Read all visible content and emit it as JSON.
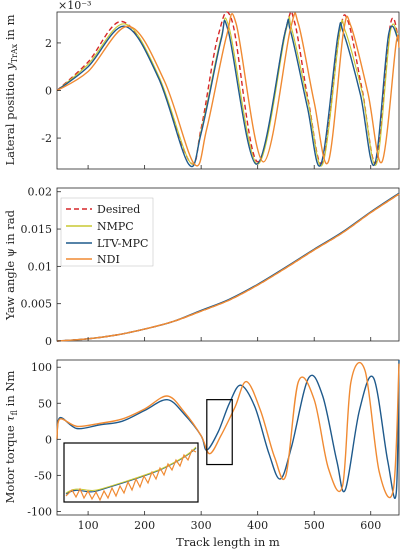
{
  "figure": {
    "exponent_label": "×10⁻³",
    "xlabel": "Track length in m",
    "colors": {
      "Desired": "#d62728",
      "NMPC": "#c8c832",
      "LTV-MPC": "#1f5a8c",
      "NDI": "#f08a32"
    }
  },
  "chart_data": [
    {
      "type": "line",
      "ylabel": "Lateral position y_TrAx in m",
      "ylabel_main": "Lateral position ",
      "ylabel_sym": "y",
      "ylabel_sub": "TrAx",
      "ylabel_unit": " in m",
      "xlim": [
        45,
        650
      ],
      "ylim": [
        -3.3,
        3.3
      ],
      "y_scale_note": "×10⁻³",
      "xticks": [
        100,
        200,
        300,
        400,
        500,
        600
      ],
      "yticks": [
        -2,
        0,
        2
      ],
      "series": [
        {
          "name": "Desired",
          "x": [
            45,
            100,
            160,
            220,
            280,
            300,
            330,
            355,
            400,
            450,
            465,
            490,
            515,
            545,
            560,
            585,
            610,
            635,
            650
          ],
          "y": [
            0,
            1.2,
            2.9,
            0.8,
            -3.0,
            -1.6,
            2.3,
            2.9,
            -3.0,
            2.6,
            2.9,
            -0.5,
            -3.0,
            2.4,
            2.9,
            0.0,
            -3.0,
            2.8,
            2.0
          ]
        },
        {
          "name": "NMPC",
          "x": [
            45,
            100,
            165,
            225,
            280,
            300,
            335,
            350,
            400,
            450,
            460,
            490,
            515,
            545,
            555,
            585,
            610,
            635,
            650
          ],
          "y": [
            0,
            1.1,
            2.8,
            0.6,
            -3.0,
            -1.7,
            2.2,
            2.6,
            -3.1,
            2.5,
            2.6,
            -0.6,
            -3.1,
            2.4,
            2.5,
            -0.1,
            -3.1,
            2.5,
            2.0
          ]
        },
        {
          "name": "LTV-MPC",
          "x": [
            45,
            100,
            165,
            225,
            278,
            300,
            335,
            348,
            398,
            448,
            458,
            488,
            512,
            542,
            552,
            582,
            607,
            632,
            650
          ],
          "y": [
            0,
            1.0,
            2.7,
            0.5,
            -3.1,
            -1.8,
            2.1,
            2.5,
            -3.1,
            2.4,
            2.5,
            -0.7,
            -3.1,
            2.3,
            2.4,
            -0.2,
            -3.1,
            2.4,
            2.0
          ]
        },
        {
          "name": "NDI",
          "x": [
            45,
            100,
            172,
            235,
            288,
            310,
            345,
            362,
            410,
            458,
            472,
            500,
            525,
            552,
            565,
            595,
            620,
            645,
            650
          ],
          "y": [
            0,
            0.8,
            2.7,
            0.4,
            -3.1,
            -1.6,
            2.3,
            2.8,
            -3.0,
            2.6,
            2.8,
            -0.5,
            -3.0,
            2.5,
            2.7,
            -0.1,
            -3.0,
            2.0,
            1.8
          ]
        }
      ]
    },
    {
      "type": "line",
      "ylabel": "Yaw angle ψ in rad",
      "xlim": [
        45,
        650
      ],
      "ylim": [
        0,
        0.0205
      ],
      "xticks": [
        100,
        200,
        300,
        400,
        500,
        600
      ],
      "yticks": [
        0,
        0.005,
        0.01,
        0.015,
        0.02
      ],
      "ytick_labels": [
        "0",
        "0.005",
        "0.01",
        "0.015",
        "0.02"
      ],
      "legend": {
        "entries": [
          "Desired",
          "NMPC",
          "LTV-MPC",
          "NDI"
        ],
        "placement": "top-left"
      },
      "series": [
        {
          "name": "Desired",
          "x": [
            45,
            100,
            150,
            200,
            250,
            300,
            350,
            400,
            450,
            500,
            550,
            600,
            650
          ],
          "y": [
            0.0,
            0.0003,
            0.0008,
            0.0016,
            0.0026,
            0.004,
            0.0055,
            0.0075,
            0.0098,
            0.0122,
            0.0145,
            0.0172,
            0.0197
          ]
        },
        {
          "name": "NMPC",
          "x": [
            45,
            100,
            150,
            200,
            250,
            300,
            350,
            400,
            450,
            500,
            550,
            600,
            650
          ],
          "y": [
            0.0,
            0.0003,
            0.0008,
            0.0016,
            0.0026,
            0.004,
            0.0055,
            0.0075,
            0.0098,
            0.0122,
            0.0145,
            0.0172,
            0.0197
          ]
        },
        {
          "name": "LTV-MPC",
          "x": [
            45,
            100,
            150,
            200,
            250,
            300,
            350,
            400,
            450,
            500,
            550,
            600,
            650
          ],
          "y": [
            0.0,
            0.0003,
            0.0008,
            0.0016,
            0.0026,
            0.0041,
            0.0056,
            0.0076,
            0.0099,
            0.0123,
            0.0146,
            0.0173,
            0.0198
          ]
        },
        {
          "name": "NDI",
          "x": [
            45,
            100,
            150,
            200,
            250,
            300,
            350,
            400,
            450,
            500,
            550,
            600,
            650
          ],
          "y": [
            0.0,
            0.0003,
            0.0008,
            0.0016,
            0.0026,
            0.004,
            0.0055,
            0.0075,
            0.0098,
            0.0122,
            0.0145,
            0.0172,
            0.0197
          ]
        }
      ]
    },
    {
      "type": "line",
      "ylabel": "Motor torque τ_fl in Nm",
      "ylabel_main": "Motor torque ",
      "ylabel_sym": "τ",
      "ylabel_sub": "fl",
      "ylabel_unit": " in Nm",
      "xlim": [
        45,
        650
      ],
      "ylim": [
        -105,
        110
      ],
      "xticks": [
        100,
        200,
        300,
        400,
        500,
        600
      ],
      "yticks": [
        -100,
        -50,
        0,
        50,
        100
      ],
      "zoom_box": {
        "x": [
          310,
          355
        ],
        "y": [
          -35,
          55
        ]
      },
      "series": [
        {
          "name": "LTV-MPC",
          "x": [
            45,
            50,
            80,
            120,
            160,
            200,
            240,
            270,
            300,
            310,
            330,
            350,
            370,
            395,
            420,
            440,
            460,
            490,
            515,
            540,
            555,
            580,
            605,
            630,
            645,
            650
          ],
          "y": [
            0,
            30,
            15,
            20,
            25,
            40,
            55,
            35,
            5,
            -15,
            10,
            50,
            75,
            45,
            -20,
            -55,
            -10,
            85,
            60,
            -30,
            -70,
            40,
            85,
            -30,
            -75,
            110
          ]
        },
        {
          "name": "NDI",
          "x": [
            45,
            50,
            80,
            120,
            160,
            200,
            240,
            270,
            300,
            315,
            335,
            360,
            380,
            405,
            430,
            450,
            472,
            500,
            525,
            550,
            565,
            590,
            615,
            640,
            650
          ],
          "y": [
            0,
            28,
            18,
            22,
            28,
            42,
            60,
            38,
            5,
            -20,
            5,
            45,
            80,
            40,
            -25,
            -50,
            80,
            55,
            -40,
            -65,
            80,
            95,
            -45,
            -70,
            105
          ]
        }
      ]
    }
  ]
}
